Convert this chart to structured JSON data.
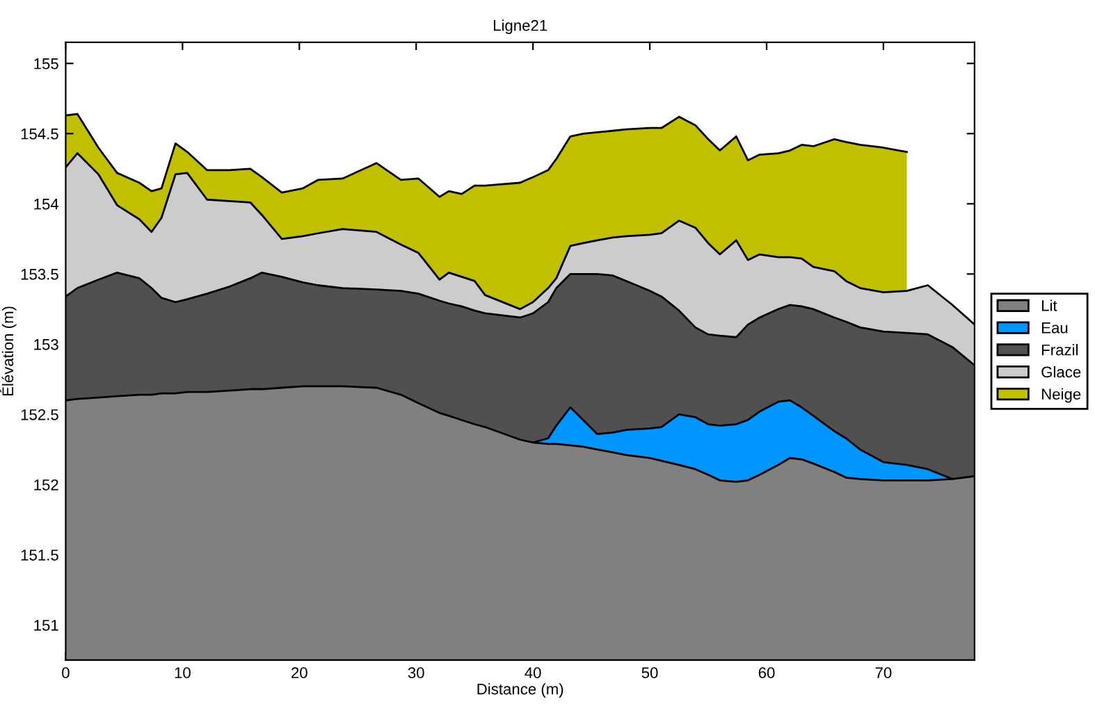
{
  "chart_data": {
    "type": "area",
    "title": "Ligne21",
    "xlabel": "Distance (m)",
    "ylabel": "Élévation (m)",
    "x": [
      0,
      1,
      2.8,
      4.4,
      6.3,
      7.35,
      8.2,
      9.4,
      10.4,
      12.1,
      14,
      15.8,
      16.8,
      18.5,
      20.3,
      21.6,
      23.7,
      26.6,
      28.7,
      30.2,
      32,
      32.8,
      33.9,
      35,
      35.9,
      38.9,
      40,
      41.3,
      42,
      43.2,
      44.3,
      45.5,
      46.8,
      48,
      50,
      51,
      52.5,
      53.9,
      55,
      56,
      57.4,
      58.4,
      59.4,
      61,
      62,
      63,
      64,
      65.8,
      66.8,
      68,
      70,
      72,
      73.8,
      75.9,
      77.8
    ],
    "series": [
      {
        "name": "Lit",
        "color": "#808080",
        "values": [
          152.6,
          152.61,
          152.62,
          152.63,
          152.64,
          152.64,
          152.65,
          152.65,
          152.66,
          152.66,
          152.67,
          152.68,
          152.68,
          152.69,
          152.7,
          152.7,
          152.7,
          152.69,
          152.64,
          152.58,
          152.51,
          152.49,
          152.46,
          152.43,
          152.41,
          152.32,
          152.3,
          152.29,
          152.29,
          152.28,
          152.27,
          152.25,
          152.23,
          152.21,
          152.19,
          152.17,
          152.14,
          152.11,
          152.07,
          152.03,
          152.02,
          152.03,
          152.07,
          152.14,
          152.19,
          152.18,
          152.15,
          152.09,
          152.05,
          152.04,
          152.03,
          152.03,
          152.03,
          152.04,
          152.06
        ]
      },
      {
        "name": "Eau",
        "color": "#0096ff",
        "values": [
          null,
          null,
          null,
          null,
          null,
          null,
          null,
          null,
          null,
          null,
          null,
          null,
          null,
          null,
          null,
          null,
          null,
          null,
          null,
          null,
          null,
          null,
          null,
          null,
          null,
          null,
          152.3,
          152.33,
          152.42,
          152.55,
          152.46,
          152.36,
          152.37,
          152.39,
          152.4,
          152.41,
          152.5,
          152.48,
          152.43,
          152.42,
          152.43,
          152.46,
          152.52,
          152.59,
          152.6,
          152.55,
          152.49,
          152.38,
          152.33,
          152.25,
          152.16,
          152.14,
          152.11,
          152.04,
          null
        ]
      },
      {
        "name": "Frazil",
        "color": "#505050",
        "values": [
          153.34,
          153.4,
          153.46,
          153.51,
          153.47,
          153.4,
          153.33,
          153.3,
          153.32,
          153.36,
          153.41,
          153.47,
          153.51,
          153.48,
          153.44,
          153.42,
          153.4,
          153.39,
          153.38,
          153.36,
          153.31,
          153.29,
          153.27,
          153.24,
          153.22,
          153.19,
          153.22,
          153.3,
          153.4,
          153.5,
          153.5,
          153.5,
          153.49,
          153.45,
          153.38,
          153.34,
          153.24,
          153.12,
          153.07,
          153.06,
          153.05,
          153.14,
          153.19,
          153.25,
          153.28,
          153.27,
          153.25,
          153.19,
          153.16,
          153.12,
          153.09,
          153.08,
          153.07,
          152.98,
          152.85
        ]
      },
      {
        "name": "Glace",
        "color": "#cccccc",
        "values": [
          154.26,
          154.36,
          154.21,
          153.99,
          153.89,
          153.8,
          153.9,
          154.21,
          154.22,
          154.03,
          154.02,
          154.01,
          153.92,
          153.75,
          153.77,
          153.79,
          153.82,
          153.8,
          153.71,
          153.65,
          153.46,
          153.51,
          153.48,
          153.45,
          153.35,
          153.25,
          153.3,
          153.4,
          153.47,
          153.7,
          153.72,
          153.74,
          153.76,
          153.77,
          153.78,
          153.79,
          153.88,
          153.83,
          153.72,
          153.64,
          153.74,
          153.6,
          153.64,
          153.62,
          153.62,
          153.61,
          153.55,
          153.52,
          153.45,
          153.4,
          153.37,
          153.38,
          153.42,
          153.28,
          153.14
        ]
      },
      {
        "name": "Neige",
        "color": "#c0c000",
        "values": [
          154.63,
          154.64,
          154.4,
          154.22,
          154.15,
          154.09,
          154.11,
          154.43,
          154.37,
          154.24,
          154.24,
          154.25,
          154.19,
          154.08,
          154.11,
          154.17,
          154.18,
          154.29,
          154.17,
          154.18,
          154.05,
          154.09,
          154.07,
          154.13,
          154.13,
          154.15,
          154.19,
          154.24,
          154.32,
          154.48,
          154.5,
          154.51,
          154.52,
          154.53,
          154.54,
          154.54,
          154.62,
          154.56,
          154.46,
          154.38,
          154.48,
          154.31,
          154.35,
          154.36,
          154.38,
          154.42,
          154.41,
          154.46,
          154.44,
          154.42,
          154.4,
          154.37,
          null,
          null,
          null
        ]
      }
    ],
    "xlim": [
      0,
      77.8
    ],
    "ylim": [
      150.75,
      155.15
    ],
    "xticks": [
      0,
      10,
      20,
      30,
      40,
      50,
      60,
      70
    ],
    "yticks": [
      151,
      151.5,
      152,
      152.5,
      153,
      153.5,
      154,
      154.5,
      155
    ],
    "legend": "right"
  }
}
